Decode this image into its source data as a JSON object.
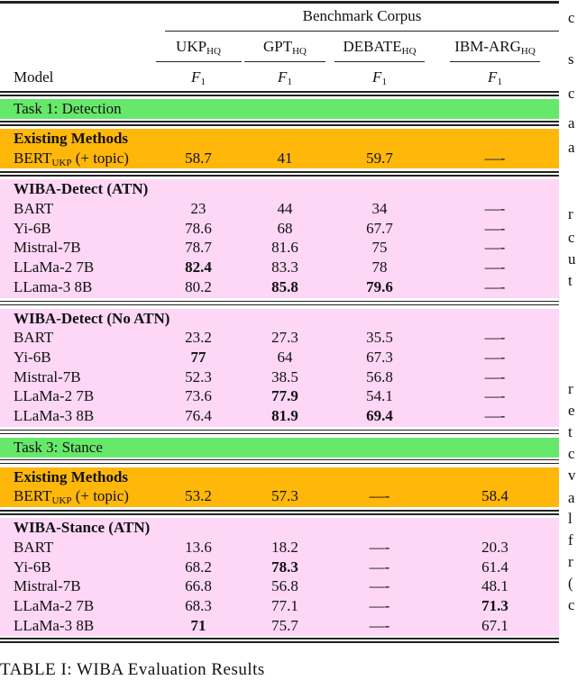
{
  "table": {
    "super_header": "Benchmark Corpus",
    "model_header": "Model",
    "columns": [
      {
        "name": "UKP",
        "sub": "HQ",
        "metric": "F",
        "metric_sub": "1"
      },
      {
        "name": "GPT",
        "sub": "HQ",
        "metric": "F",
        "metric_sub": "1"
      },
      {
        "name": "DEBATE",
        "sub": "HQ",
        "metric": "F",
        "metric_sub": "1"
      },
      {
        "name": "IBM-ARG",
        "sub": "HQ",
        "metric": "F",
        "metric_sub": "1"
      }
    ],
    "colors": {
      "task": "#66e86a",
      "existing": "#ffb70a",
      "wiba": "#fdd7f5"
    },
    "sections": [
      {
        "task": "Task 1: Detection",
        "groups": [
          {
            "title": "Existing Methods",
            "style": "existing",
            "rows": [
              {
                "model": "BERT",
                "model_sub": "UKP",
                "model_suffix": " (+ topic)",
                "values": [
                  "58.7",
                  "41",
                  "59.7",
                  "—-"
                ],
                "bold": []
              }
            ]
          },
          {
            "title": "WIBA-Detect (ATN)",
            "style": "wiba",
            "rows": [
              {
                "model": "BART",
                "values": [
                  "23",
                  "44",
                  "34",
                  "—-"
                ],
                "bold": []
              },
              {
                "model": "Yi-6B",
                "values": [
                  "78.6",
                  "68",
                  "67.7",
                  "—-"
                ],
                "bold": []
              },
              {
                "model": "Mistral-7B",
                "values": [
                  "78.7",
                  "81.6",
                  "75",
                  "—-"
                ],
                "bold": []
              },
              {
                "model": "LLaMa-2 7B",
                "values": [
                  "82.4",
                  "83.3",
                  "78",
                  "—-"
                ],
                "bold": [
                  0
                ]
              },
              {
                "model": "LLama-3 8B",
                "values": [
                  "80.2",
                  "85.8",
                  "79.6",
                  "—-"
                ],
                "bold": [
                  1,
                  2
                ]
              }
            ]
          },
          {
            "title": "WIBA-Detect (No ATN)",
            "style": "wiba",
            "rows": [
              {
                "model": "BART",
                "values": [
                  "23.2",
                  "27.3",
                  "35.5",
                  "—-"
                ],
                "bold": []
              },
              {
                "model": "Yi-6B",
                "values": [
                  "77",
                  "64",
                  "67.3",
                  "—-"
                ],
                "bold": [
                  0
                ]
              },
              {
                "model": "Mistral-7B",
                "values": [
                  "52.3",
                  "38.5",
                  "56.8",
                  "—-"
                ],
                "bold": []
              },
              {
                "model": "LLaMa-2 7B",
                "values": [
                  "73.6",
                  "77.9",
                  "54.1",
                  "—-"
                ],
                "bold": [
                  1
                ]
              },
              {
                "model": "LLaMa-3 8B",
                "values": [
                  "76.4",
                  "81.9",
                  "69.4",
                  "—-"
                ],
                "bold": [
                  1,
                  2
                ]
              }
            ]
          }
        ]
      },
      {
        "task": "Task 3: Stance",
        "groups": [
          {
            "title": "Existing Methods",
            "style": "existing",
            "rows": [
              {
                "model": "BERT",
                "model_sub": "UKP",
                "model_suffix": " (+ topic)",
                "values": [
                  "53.2",
                  "57.3",
                  "—-",
                  "58.4"
                ],
                "bold": []
              }
            ]
          },
          {
            "title": "WIBA-Stance (ATN)",
            "style": "wiba",
            "rows": [
              {
                "model": "BART",
                "values": [
                  "13.6",
                  "18.2",
                  "—-",
                  "20.3"
                ],
                "bold": []
              },
              {
                "model": "Yi-6B",
                "values": [
                  "68.2",
                  "78.3",
                  "—-",
                  "61.4"
                ],
                "bold": [
                  1
                ]
              },
              {
                "model": "Mistral-7B",
                "values": [
                  "66.8",
                  "56.8",
                  "—-",
                  "48.1"
                ],
                "bold": []
              },
              {
                "model": "LLaMa-2 7B",
                "values": [
                  "68.3",
                  "77.1",
                  "—-",
                  "71.3"
                ],
                "bold": [
                  3
                ]
              },
              {
                "model": "LLaMa-3 8B",
                "values": [
                  "71",
                  "75.7",
                  "—-",
                  "67.1"
                ],
                "bold": [
                  0
                ]
              }
            ]
          }
        ]
      }
    ]
  },
  "caption": "TABLE I: WIBA Evaluation Results",
  "margin_fragments": [
    "c",
    "s",
    "c",
    "a",
    "a",
    "r",
    "c",
    "u",
    "t",
    "r",
    "e",
    "t",
    "c",
    "v",
    "a",
    "l",
    "f",
    "r",
    "(",
    "c"
  ]
}
